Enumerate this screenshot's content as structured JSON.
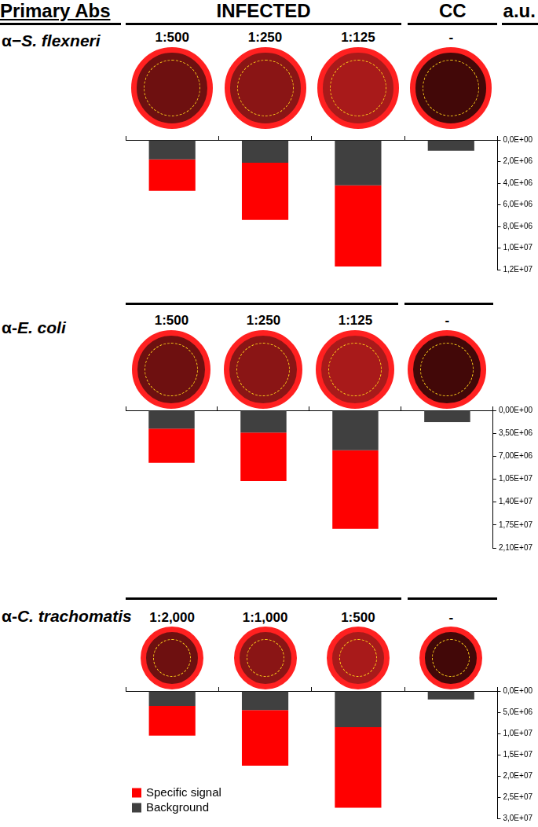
{
  "header": {
    "primary": "Primary Abs",
    "group": "INFECTED",
    "control": "CC",
    "unit": "a.u."
  },
  "chart_data": [
    {
      "type": "bar",
      "stacked": true,
      "grid": false,
      "title": "α−S. flexneri",
      "categories": [
        "1:500",
        "1:250",
        "1:125",
        "-"
      ],
      "series": [
        {
          "name": "Specific signal",
          "color": "#ff0000",
          "values": [
            2900000,
            5300000,
            7500000,
            null
          ]
        },
        {
          "name": "Background",
          "color": "#404040",
          "values": [
            1800000,
            2100000,
            4200000,
            1000000
          ]
        }
      ],
      "ylim": [
        0,
        12000000
      ],
      "yticks": [
        {
          "value": 0,
          "label": "0,0E+00"
        },
        {
          "value": 2000000,
          "label": "2,0E+06"
        },
        {
          "value": 4000000,
          "label": "4,0E+06"
        },
        {
          "value": 6000000,
          "label": "6,0E+06"
        },
        {
          "value": 8000000,
          "label": "8,0E+06"
        },
        {
          "value": 10000000,
          "label": "1,0E+07"
        },
        {
          "value": 12000000,
          "label": "1,2E+07"
        }
      ]
    },
    {
      "type": "bar",
      "stacked": true,
      "grid": false,
      "title": "α-E. coli",
      "categories": [
        "1:500",
        "1:250",
        "1:125",
        "-"
      ],
      "series": [
        {
          "name": "Specific signal",
          "color": "#ff0000",
          "values": [
            5200000,
            7400000,
            12000000,
            null
          ]
        },
        {
          "name": "Background",
          "color": "#404040",
          "values": [
            2800000,
            3400000,
            6100000,
            1800000
          ]
        }
      ],
      "ylim": [
        0,
        21000000
      ],
      "yticks": [
        {
          "value": 0,
          "label": "0,00E+00"
        },
        {
          "value": 3500000,
          "label": "3,50E+06"
        },
        {
          "value": 7000000,
          "label": "7,00E+06"
        },
        {
          "value": 10500000,
          "label": "1,05E+07"
        },
        {
          "value": 14000000,
          "label": "1,40E+07"
        },
        {
          "value": 17500000,
          "label": "1,75E+07"
        },
        {
          "value": 21000000,
          "label": "2,10E+07"
        }
      ]
    },
    {
      "type": "bar",
      "stacked": true,
      "grid": false,
      "legend": "lower left",
      "title": "α-C. trachomatis",
      "categories": [
        "1:2,000",
        "1:1,000",
        "1:500",
        "-"
      ],
      "series": [
        {
          "name": "Specific signal",
          "color": "#ff0000",
          "values": [
            7000000,
            13100000,
            19000000,
            null
          ]
        },
        {
          "name": "Background",
          "color": "#404040",
          "values": [
            3500000,
            4500000,
            8500000,
            2000000
          ]
        }
      ],
      "ylim": [
        0,
        30000000
      ],
      "yticks": [
        {
          "value": 0,
          "label": "0,0E+00"
        },
        {
          "value": 5000000,
          "label": "5,0E+06"
        },
        {
          "value": 10000000,
          "label": "1,0E+07"
        },
        {
          "value": 15000000,
          "label": "1,5E+07"
        },
        {
          "value": 20000000,
          "label": "2,0E+07"
        },
        {
          "value": 25000000,
          "label": "2,5E+07"
        },
        {
          "value": 30000000,
          "label": "3,0E+07"
        }
      ]
    }
  ]
}
